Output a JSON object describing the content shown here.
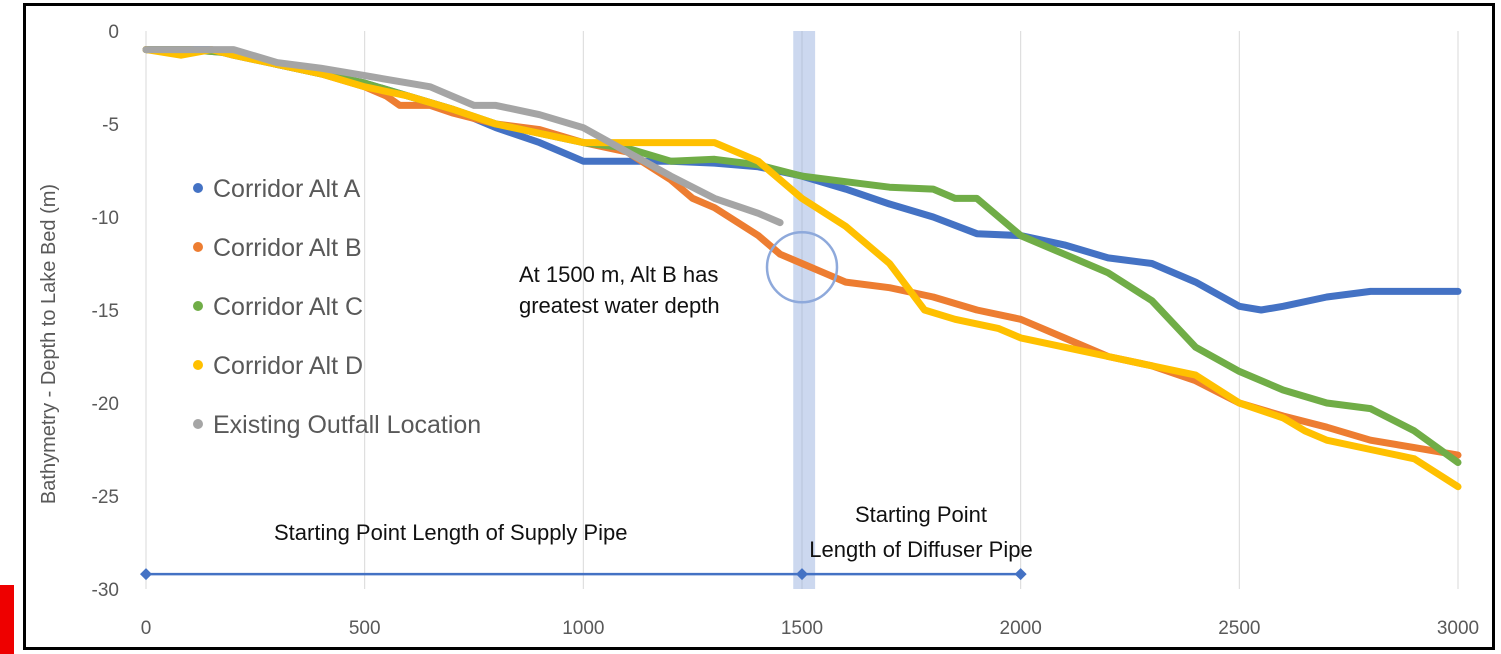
{
  "chart_data": {
    "type": "line",
    "title": "",
    "xlabel": "",
    "ylabel": "Bathymetry - Depth to Lake Bed (m)",
    "xlim": [
      0,
      3000
    ],
    "ylim": [
      -30,
      0
    ],
    "x_ticks": [
      0,
      500,
      1000,
      1500,
      2000,
      2500,
      3000
    ],
    "y_ticks": [
      0,
      -5,
      -10,
      -15,
      -20,
      -25,
      -30
    ],
    "grid": "vertical",
    "legend_position": "left",
    "series": [
      {
        "name": "Corridor Alt A",
        "color": "#4472C4",
        "points": [
          [
            0,
            -1
          ],
          [
            100,
            -1
          ],
          [
            150,
            -1
          ],
          [
            200,
            -1.3
          ],
          [
            300,
            -1.8
          ],
          [
            400,
            -2.3
          ],
          [
            500,
            -2.8
          ],
          [
            600,
            -3.5
          ],
          [
            700,
            -4.2
          ],
          [
            800,
            -5.2
          ],
          [
            900,
            -6
          ],
          [
            1000,
            -7
          ],
          [
            1100,
            -7
          ],
          [
            1200,
            -7
          ],
          [
            1300,
            -7.1
          ],
          [
            1400,
            -7.3
          ],
          [
            1500,
            -7.8
          ],
          [
            1600,
            -8.5
          ],
          [
            1700,
            -9.3
          ],
          [
            1800,
            -10
          ],
          [
            1900,
            -10.9
          ],
          [
            2000,
            -11
          ],
          [
            2100,
            -11.5
          ],
          [
            2200,
            -12.2
          ],
          [
            2300,
            -12.5
          ],
          [
            2400,
            -13.5
          ],
          [
            2500,
            -14.8
          ],
          [
            2550,
            -15
          ],
          [
            2600,
            -14.8
          ],
          [
            2700,
            -14.3
          ],
          [
            2800,
            -14
          ],
          [
            2900,
            -14
          ],
          [
            3000,
            -14
          ]
        ]
      },
      {
        "name": "Corridor Alt B",
        "color": "#ED7D31",
        "points": [
          [
            0,
            -1
          ],
          [
            100,
            -1
          ],
          [
            200,
            -1.2
          ],
          [
            300,
            -1.8
          ],
          [
            400,
            -2.3
          ],
          [
            500,
            -3
          ],
          [
            550,
            -3.5
          ],
          [
            580,
            -4
          ],
          [
            650,
            -4
          ],
          [
            700,
            -4.4
          ],
          [
            800,
            -5
          ],
          [
            900,
            -5.3
          ],
          [
            1000,
            -6
          ],
          [
            1100,
            -6.5
          ],
          [
            1200,
            -8
          ],
          [
            1250,
            -9
          ],
          [
            1300,
            -9.5
          ],
          [
            1400,
            -11
          ],
          [
            1450,
            -12
          ],
          [
            1500,
            -12.5
          ],
          [
            1550,
            -13
          ],
          [
            1600,
            -13.5
          ],
          [
            1700,
            -13.8
          ],
          [
            1800,
            -14.3
          ],
          [
            1900,
            -15
          ],
          [
            2000,
            -15.5
          ],
          [
            2100,
            -16.5
          ],
          [
            2200,
            -17.5
          ],
          [
            2300,
            -18
          ],
          [
            2400,
            -18.8
          ],
          [
            2500,
            -20
          ],
          [
            2600,
            -20.7
          ],
          [
            2700,
            -21.3
          ],
          [
            2800,
            -22
          ],
          [
            2900,
            -22.4
          ],
          [
            3000,
            -22.8
          ]
        ]
      },
      {
        "name": "Corridor Alt C",
        "color": "#70AD47",
        "points": [
          [
            0,
            -1
          ],
          [
            100,
            -1
          ],
          [
            200,
            -1.2
          ],
          [
            300,
            -1.8
          ],
          [
            400,
            -2.3
          ],
          [
            500,
            -2.8
          ],
          [
            600,
            -3.5
          ],
          [
            700,
            -4.2
          ],
          [
            800,
            -5
          ],
          [
            900,
            -5.5
          ],
          [
            1000,
            -6
          ],
          [
            1100,
            -6.3
          ],
          [
            1200,
            -7
          ],
          [
            1300,
            -6.9
          ],
          [
            1400,
            -7.2
          ],
          [
            1500,
            -7.8
          ],
          [
            1600,
            -8.1
          ],
          [
            1700,
            -8.4
          ],
          [
            1800,
            -8.5
          ],
          [
            1850,
            -9
          ],
          [
            1900,
            -9
          ],
          [
            2000,
            -11
          ],
          [
            2100,
            -12
          ],
          [
            2200,
            -13
          ],
          [
            2300,
            -14.5
          ],
          [
            2400,
            -17
          ],
          [
            2500,
            -18.3
          ],
          [
            2600,
            -19.3
          ],
          [
            2700,
            -20
          ],
          [
            2800,
            -20.3
          ],
          [
            2900,
            -21.5
          ],
          [
            3000,
            -23.2
          ]
        ]
      },
      {
        "name": "Corridor Alt D",
        "color": "#FFC000",
        "points": [
          [
            0,
            -1
          ],
          [
            80,
            -1.3
          ],
          [
            150,
            -1
          ],
          [
            200,
            -1.3
          ],
          [
            300,
            -1.8
          ],
          [
            400,
            -2.3
          ],
          [
            500,
            -3
          ],
          [
            600,
            -3.5
          ],
          [
            700,
            -4.2
          ],
          [
            800,
            -5
          ],
          [
            900,
            -5.5
          ],
          [
            1000,
            -6
          ],
          [
            1100,
            -6
          ],
          [
            1200,
            -6
          ],
          [
            1300,
            -6
          ],
          [
            1400,
            -7
          ],
          [
            1500,
            -9
          ],
          [
            1600,
            -10.5
          ],
          [
            1700,
            -12.5
          ],
          [
            1780,
            -15
          ],
          [
            1850,
            -15.5
          ],
          [
            1950,
            -16
          ],
          [
            2000,
            -16.5
          ],
          [
            2100,
            -17
          ],
          [
            2200,
            -17.5
          ],
          [
            2300,
            -18
          ],
          [
            2400,
            -18.5
          ],
          [
            2500,
            -20
          ],
          [
            2600,
            -20.8
          ],
          [
            2650,
            -21.5
          ],
          [
            2700,
            -22
          ],
          [
            2800,
            -22.5
          ],
          [
            2900,
            -23
          ],
          [
            3000,
            -24.5
          ]
        ]
      },
      {
        "name": "Existing Outfall Location",
        "color": "#A5A5A5",
        "points": [
          [
            0,
            -1
          ],
          [
            100,
            -1
          ],
          [
            200,
            -1
          ],
          [
            300,
            -1.7
          ],
          [
            400,
            -2
          ],
          [
            500,
            -2.4
          ],
          [
            600,
            -2.8
          ],
          [
            650,
            -3
          ],
          [
            700,
            -3.5
          ],
          [
            750,
            -4
          ],
          [
            800,
            -4
          ],
          [
            900,
            -4.5
          ],
          [
            1000,
            -5.2
          ],
          [
            1100,
            -6.5
          ],
          [
            1200,
            -7.8
          ],
          [
            1300,
            -9
          ],
          [
            1400,
            -9.8
          ],
          [
            1450,
            -10.3
          ]
        ]
      }
    ],
    "highlight_band": {
      "x_from": 1480,
      "x_to": 1530,
      "color": "#8EA9DB"
    },
    "highlight_circle": {
      "x": 1500,
      "y": -12.7
    },
    "annotation": {
      "line1": "At 1500 m, Alt B has",
      "line2": "greatest water depth"
    },
    "pipe_line": {
      "y": -29.2,
      "points_x": [
        0,
        1500,
        2000
      ],
      "color": "#4472C4",
      "supply_label": "Starting Point Length of Supply Pipe",
      "diffuser_label_line1": "Starting Point",
      "diffuser_label_line2": "Length of Diffuser Pipe"
    }
  }
}
